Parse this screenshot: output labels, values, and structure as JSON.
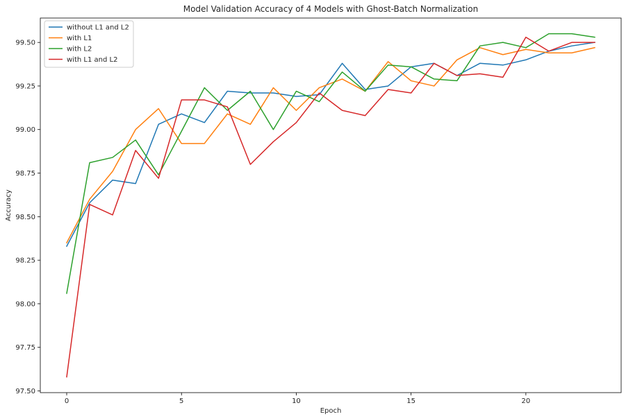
{
  "chart_data": {
    "type": "line",
    "title": "Model Validation Accuracy of 4 Models with Ghost-Batch Normalization",
    "xlabel": "Epoch",
    "ylabel": "Accuracy",
    "xlim": [
      -1.15,
      24.15
    ],
    "ylim": [
      97.49,
      99.64
    ],
    "x_ticks": [
      0,
      5,
      10,
      15,
      20
    ],
    "y_ticks": [
      97.5,
      97.75,
      98.0,
      98.25,
      98.5,
      98.75,
      99.0,
      99.25,
      99.5
    ],
    "x_tick_labels": [
      "0",
      "5",
      "10",
      "15",
      "20"
    ],
    "y_tick_labels": [
      "97.50",
      "97.75",
      "98.00",
      "98.25",
      "98.50",
      "98.75",
      "99.00",
      "99.25",
      "99.50"
    ],
    "grid": false,
    "legend_position": "upper-left",
    "x": [
      0,
      1,
      2,
      3,
      4,
      5,
      6,
      7,
      8,
      9,
      10,
      11,
      12,
      13,
      14,
      15,
      16,
      17,
      18,
      19,
      20,
      21,
      22,
      23
    ],
    "series": [
      {
        "name": "without L1 and L2",
        "color": "#1f77b4",
        "values": [
          98.33,
          98.58,
          98.71,
          98.69,
          99.03,
          99.09,
          99.04,
          99.22,
          99.21,
          99.21,
          99.19,
          99.2,
          99.38,
          99.23,
          99.25,
          99.36,
          99.38,
          99.31,
          99.38,
          99.37,
          99.4,
          99.45,
          99.48,
          99.5
        ]
      },
      {
        "name": "with L1",
        "color": "#ff7f0e",
        "values": [
          98.35,
          98.6,
          98.76,
          99.0,
          99.12,
          98.92,
          98.92,
          99.09,
          99.03,
          99.24,
          99.11,
          99.24,
          99.29,
          99.22,
          99.39,
          99.28,
          99.25,
          99.4,
          99.47,
          99.43,
          99.46,
          99.44,
          99.44,
          99.47
        ]
      },
      {
        "name": "with L2",
        "color": "#2ca02c",
        "values": [
          98.06,
          98.81,
          98.84,
          98.94,
          98.74,
          98.99,
          99.24,
          99.11,
          99.22,
          99.0,
          99.22,
          99.16,
          99.33,
          99.22,
          99.37,
          99.36,
          99.29,
          99.28,
          99.48,
          99.5,
          99.47,
          99.55,
          99.55,
          99.53
        ]
      },
      {
        "name": "with L1 and L2",
        "color": "#d62728",
        "values": [
          97.58,
          98.57,
          98.51,
          98.88,
          98.72,
          99.17,
          99.17,
          99.13,
          98.8,
          98.93,
          99.04,
          99.21,
          99.11,
          99.08,
          99.23,
          99.21,
          99.38,
          99.31,
          99.32,
          99.3,
          99.53,
          99.45,
          99.5,
          99.5
        ]
      }
    ]
  }
}
